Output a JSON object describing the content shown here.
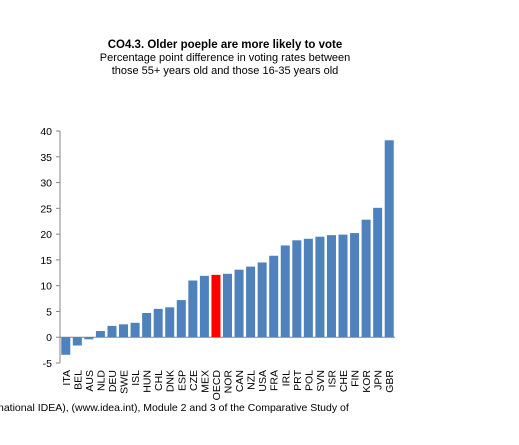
{
  "chart_data": {
    "type": "bar",
    "title": "CO4.3. Older poeple are more likely to vote",
    "subtitle_lines": [
      "Percentage point difference in voting rates between",
      "those 55+ years old and those 16-35 years old"
    ],
    "xlabel": "",
    "ylabel": "",
    "ylim": [
      -5,
      40
    ],
    "yticks": [
      -5,
      0,
      5,
      10,
      15,
      20,
      25,
      30,
      35,
      40
    ],
    "grid": false,
    "legend": "none",
    "categories": [
      "ITA",
      "BEL",
      "AUS",
      "NLD",
      "DEU",
      "SWE",
      "ISL",
      "HUN",
      "CHL",
      "DNK",
      "ESP",
      "CZE",
      "MEX",
      "OECD",
      "NOR",
      "CAN",
      "NZL",
      "USA",
      "FRA",
      "IRL",
      "PRT",
      "POL",
      "SVN",
      "ISR",
      "CHE",
      "FIN",
      "KOR",
      "JPN",
      "GBR"
    ],
    "values": [
      -3.4,
      -1.6,
      -0.4,
      1.2,
      2.2,
      2.5,
      2.8,
      4.7,
      5.5,
      5.8,
      7.2,
      11.0,
      11.9,
      12.1,
      12.3,
      13.1,
      13.7,
      14.5,
      15.8,
      17.8,
      18.8,
      19.1,
      19.5,
      19.8,
      19.9,
      20.2,
      22.8,
      25.1,
      38.2
    ],
    "colors": {
      "bar": "#4f81bd",
      "highlight": "#ff0000"
    },
    "highlight_category": "OECD"
  },
  "footer": "national IDEA), (www.idea.int), Module 2 and 3 of the Comparative Study of"
}
